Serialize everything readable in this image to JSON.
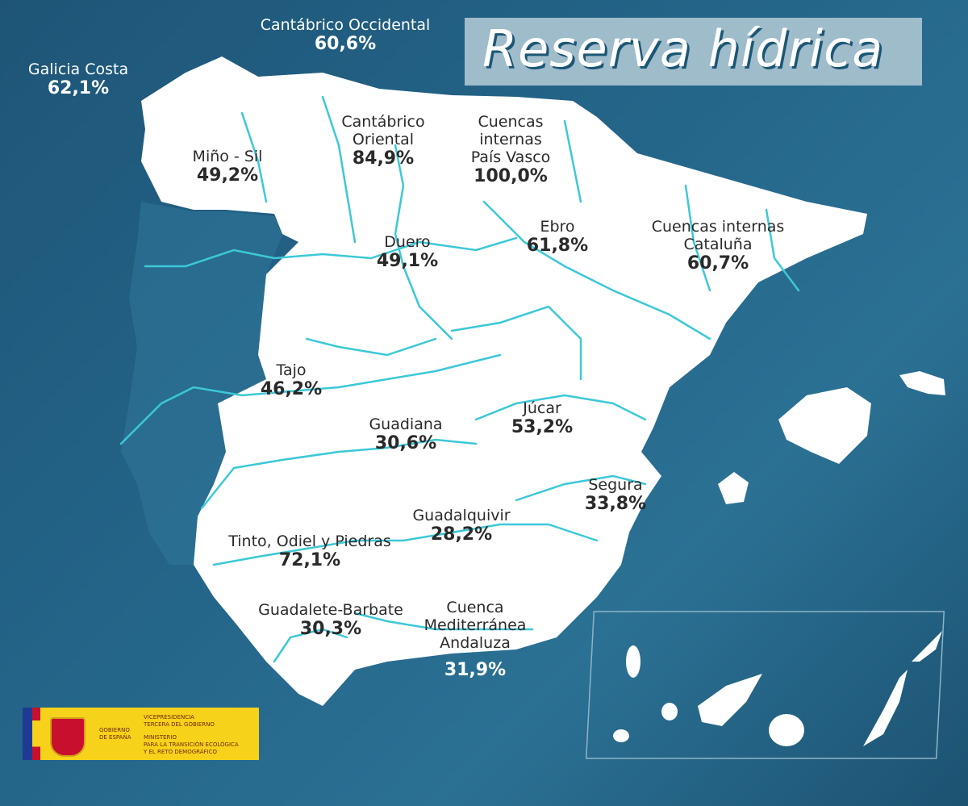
{
  "title": "Reserva hídrica",
  "colors": {
    "sea": "#24668a",
    "land": "#ffffff",
    "rivers": "#3cc8d8",
    "title_box": "#9fbccb"
  },
  "basins": [
    {
      "name": "Galicia Costa",
      "value": "62,1%"
    },
    {
      "name": "Cantábrico Occidental",
      "value": "60,6%"
    },
    {
      "name": "Miño - Sil",
      "value": "49,2%"
    },
    {
      "name": "Cantábrico\nOriental",
      "value": "84,9%"
    },
    {
      "name": "Cuencas\ninternas\nPaís Vasco",
      "value": "100,0%"
    },
    {
      "name": "Ebro",
      "value": "61,8%"
    },
    {
      "name": "Duero",
      "value": "49,1%"
    },
    {
      "name": "Cuencas internas\nCataluña",
      "value": "60,7%"
    },
    {
      "name": "Tajo",
      "value": "46,2%"
    },
    {
      "name": "Guadiana",
      "value": "30,6%"
    },
    {
      "name": "Júcar",
      "value": "53,2%"
    },
    {
      "name": "Segura",
      "value": "33,8%"
    },
    {
      "name": "Guadalquivir",
      "value": "28,2%"
    },
    {
      "name": "Tinto, Odiel y Piedras",
      "value": "72,1%"
    },
    {
      "name": "Guadalete-Barbate",
      "value": "30,3%"
    },
    {
      "name": "Cuenca\nMediterránea\nAndaluza",
      "value": "31,9%"
    }
  ],
  "logo": {
    "gobierno": "GOBIERNO\nDE ESPAÑA",
    "vicepresidencia": "VICEPRESIDENCIA\nTERCERA DEL GOBIERNO",
    "ministerio": "MINISTERIO\nPARA LA TRANSICIÓN ECOLÓGICA\nY EL RETO DEMOGRÁFICO"
  }
}
